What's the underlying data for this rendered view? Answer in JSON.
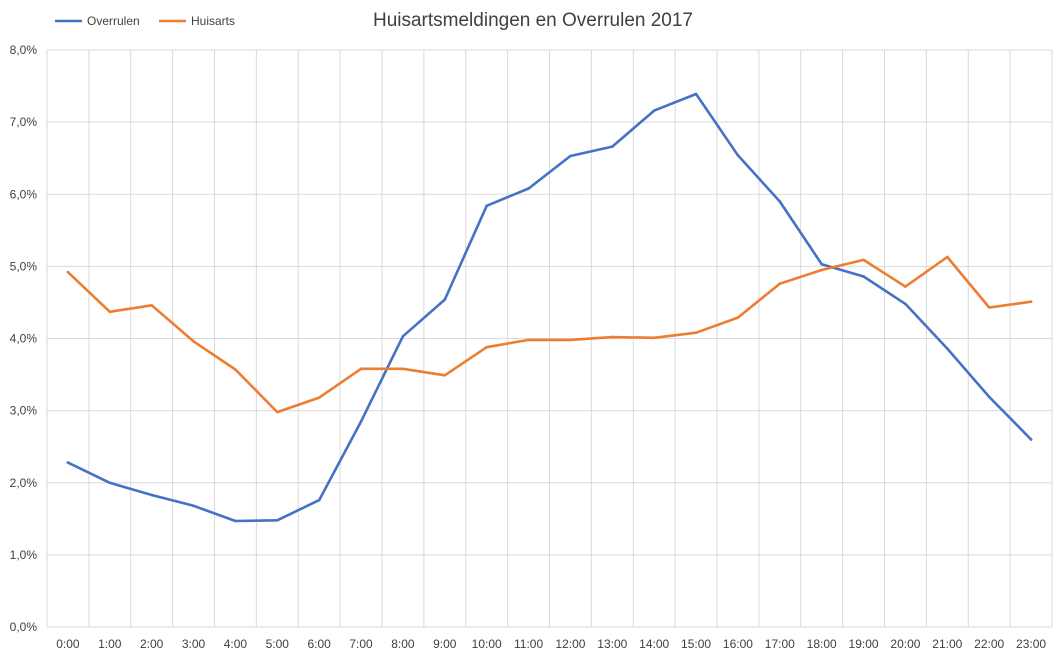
{
  "chart_data": {
    "type": "line",
    "title": "Huisartsmeldingen en Overrulen 2017",
    "xlabel": "",
    "ylabel": "",
    "categories": [
      "0:00",
      "1:00",
      "2:00",
      "3:00",
      "4:00",
      "5:00",
      "6:00",
      "7:00",
      "8:00",
      "9:00",
      "10:00",
      "11:00",
      "12:00",
      "13:00",
      "14:00",
      "15:00",
      "16:00",
      "17:00",
      "18:00",
      "19:00",
      "20:00",
      "21:00",
      "22:00",
      "23:00"
    ],
    "ylim": [
      0,
      8
    ],
    "y_ticks": [
      "0,0%",
      "1,0%",
      "2,0%",
      "3,0%",
      "4,0%",
      "5,0%",
      "6,0%",
      "7,0%",
      "8,0%"
    ],
    "y_unit": "%",
    "grid": true,
    "legend_position": "top-left",
    "series": [
      {
        "name": "Overrulen",
        "color": "#4472C4",
        "values": [
          2.28,
          2.0,
          1.83,
          1.68,
          1.47,
          1.48,
          1.76,
          2.85,
          4.03,
          4.54,
          5.84,
          6.08,
          6.53,
          6.66,
          7.16,
          7.39,
          6.54,
          5.9,
          5.03,
          4.86,
          4.48,
          3.86,
          3.19,
          2.6
        ]
      },
      {
        "name": "Huisarts",
        "color": "#ED7D31",
        "values": [
          4.92,
          4.37,
          4.46,
          3.96,
          3.57,
          2.98,
          3.18,
          3.58,
          3.58,
          3.49,
          3.88,
          3.98,
          3.98,
          4.02,
          4.01,
          4.08,
          4.29,
          4.76,
          4.95,
          5.09,
          4.72,
          5.13,
          4.43,
          4.51
        ]
      }
    ]
  }
}
